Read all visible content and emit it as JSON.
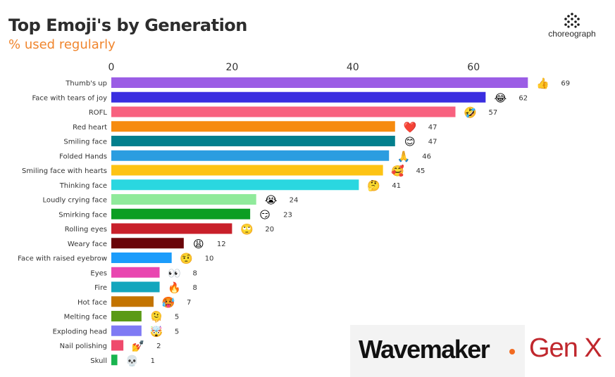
{
  "header": {
    "title": "Top Emoji's by Generation",
    "subtitle": "% used regularly",
    "brand": "choreograph"
  },
  "logos": {
    "agency": "Wavemaker",
    "generation": "Gen X"
  },
  "chart_data": {
    "type": "bar",
    "orientation": "horizontal",
    "title": "Top Emoji's by Generation",
    "subtitle": "% used regularly",
    "xlim": [
      0,
      70
    ],
    "ticks": [
      0,
      20,
      40,
      60
    ],
    "axis_position": "top",
    "grid": false,
    "legend": "none",
    "categories": [
      "Thumb's up",
      "Face with tears of joy",
      "ROFL",
      "Red heart",
      "Smiling face",
      "Folded Hands",
      "Smiling face with hearts",
      "Thinking face",
      "Loudly crying face",
      "Smirking face",
      "Rolling eyes",
      "Weary face",
      "Face with raised eyebrow",
      "Eyes",
      "Fire",
      "Hot face",
      "Melting face",
      "Exploding head",
      "Nail polishing",
      "Skull"
    ],
    "values": [
      69,
      62,
      57,
      47,
      47,
      46,
      45,
      41,
      24,
      23,
      20,
      12,
      10,
      8,
      8,
      7,
      5,
      5,
      2,
      1
    ],
    "emojis": [
      "👍",
      "😂",
      "🤣",
      "❤️",
      "😊",
      "🙏",
      "🥰",
      "🤔",
      "😭",
      "😏",
      "🙄",
      "😩",
      "🤨",
      "👀",
      "🔥",
      "🥵",
      "🫠",
      "🤯",
      "💅",
      "💀"
    ],
    "colors": [
      "#9b5de5",
      "#3a2ee0",
      "#f8617f",
      "#f68b0f",
      "#027f8d",
      "#2b9de0",
      "#fdc314",
      "#2ad7e0",
      "#90ea9b",
      "#0c9e22",
      "#c8202a",
      "#6a0509",
      "#1b9cfb",
      "#e946b0",
      "#13a6bd",
      "#c37400",
      "#5a9a16",
      "#7f7af4",
      "#ef4a6c",
      "#19b44f"
    ]
  }
}
